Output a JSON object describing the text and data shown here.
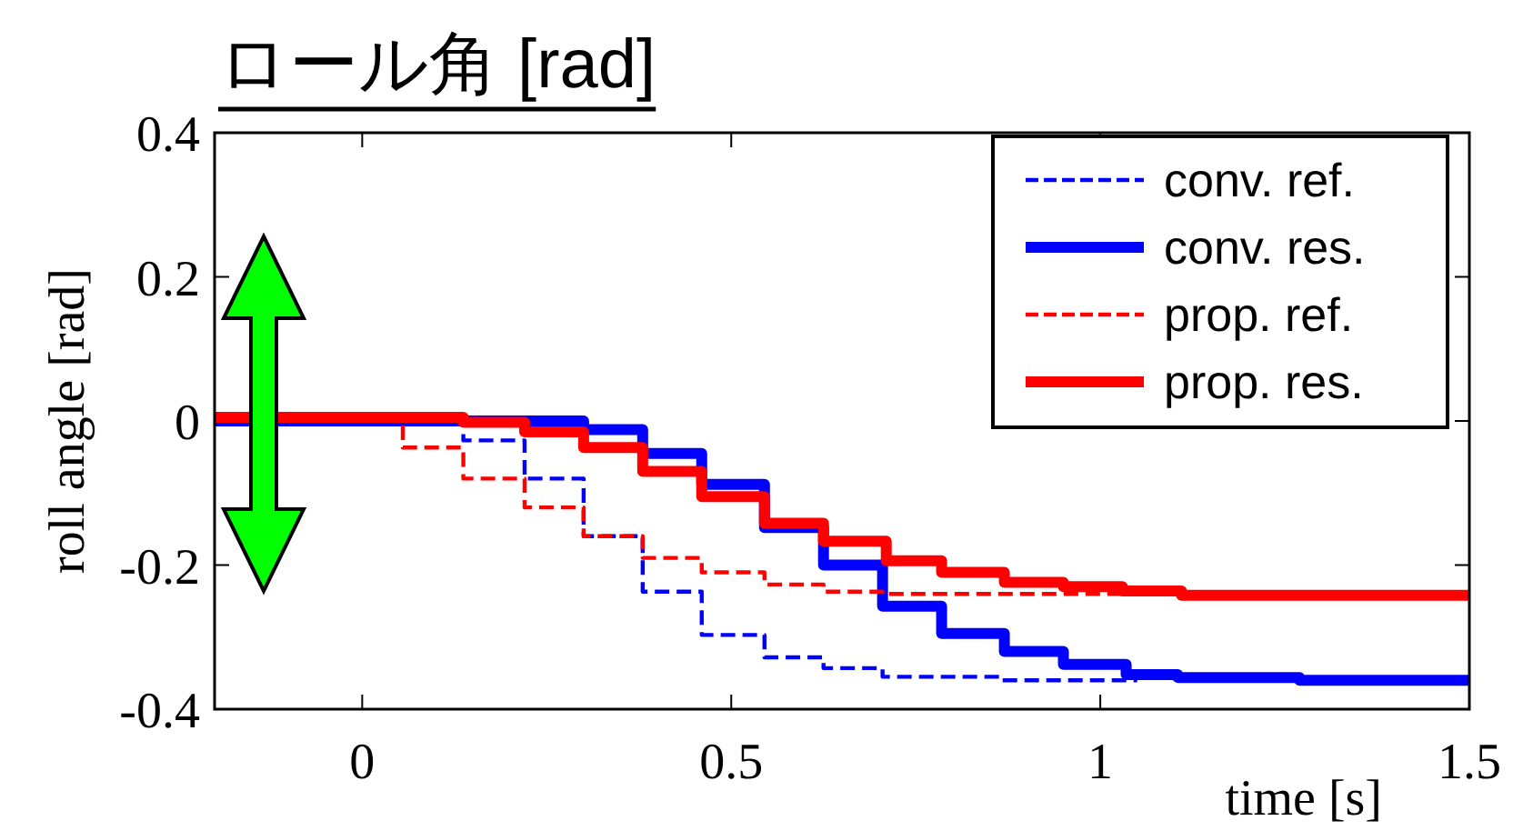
{
  "chart_data": {
    "type": "step",
    "title": "ロール角 [rad]",
    "xlabel": "time [s]",
    "ylabel": "roll angle [rad]",
    "xlim": [
      -0.2,
      1.5
    ],
    "ylim": [
      -0.4,
      0.4
    ],
    "xticks": [
      0,
      0.5,
      1,
      1.5
    ],
    "yticks": [
      -0.4,
      -0.2,
      0,
      0.2,
      0.4
    ],
    "legend": "top right",
    "grid": false,
    "series": [
      {
        "name": "conv. ref.",
        "color": "#0000ff",
        "line_style": "dashed",
        "x": [
          -0.2,
          0.137,
          0.22,
          0.3,
          0.38,
          0.46,
          0.545,
          0.625,
          0.705,
          0.866,
          1.05
        ],
        "values": [
          0,
          -0.027,
          -0.08,
          -0.16,
          -0.237,
          -0.297,
          -0.328,
          -0.343,
          -0.355,
          -0.36,
          -0.36
        ]
      },
      {
        "name": "conv. res.",
        "color": "#0000ff",
        "line_style": "solid",
        "x": [
          -0.2,
          0.3,
          0.38,
          0.46,
          0.545,
          0.625,
          0.705,
          0.785,
          0.87,
          0.95,
          1.035,
          1.105,
          1.27,
          1.5
        ],
        "values": [
          0,
          -0.012,
          -0.045,
          -0.088,
          -0.148,
          -0.2,
          -0.257,
          -0.295,
          -0.32,
          -0.338,
          -0.352,
          -0.356,
          -0.36,
          -0.36
        ]
      },
      {
        "name": "prop. ref.",
        "color": "#ff0000",
        "line_style": "dashed",
        "x": [
          -0.2,
          0.055,
          0.137,
          0.22,
          0.3,
          0.38,
          0.46,
          0.545,
          0.625,
          0.705,
          1.05
        ],
        "values": [
          0.005,
          -0.037,
          -0.08,
          -0.12,
          -0.16,
          -0.19,
          -0.21,
          -0.227,
          -0.237,
          -0.24,
          -0.24
        ]
      },
      {
        "name": "prop. res.",
        "color": "#ff0000",
        "line_style": "solid",
        "x": [
          -0.2,
          0.137,
          0.22,
          0.3,
          0.38,
          0.46,
          0.545,
          0.625,
          0.71,
          0.785,
          0.87,
          0.95,
          1.03,
          1.11,
          1.5
        ],
        "values": [
          0.005,
          -0.002,
          -0.015,
          -0.037,
          -0.07,
          -0.105,
          -0.142,
          -0.167,
          -0.194,
          -0.21,
          -0.224,
          -0.23,
          -0.236,
          -0.242,
          -0.242
        ]
      }
    ]
  }
}
